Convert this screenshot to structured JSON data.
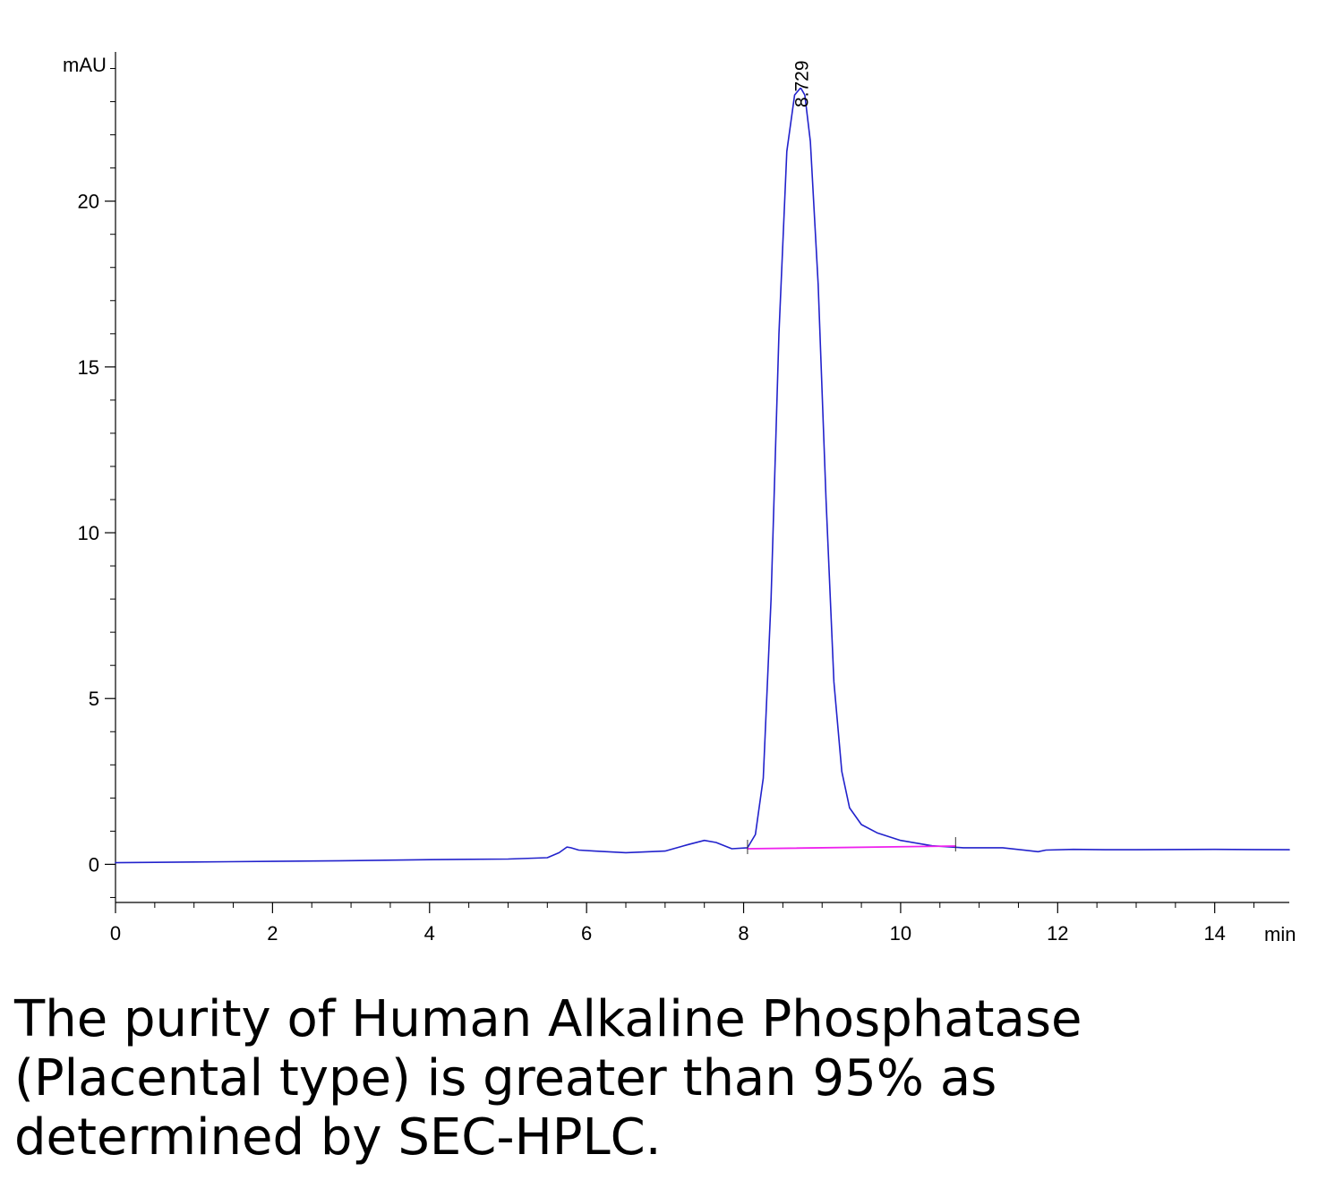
{
  "caption": "The purity of Human Alkaline Phosphatase (Placental type) is greater than 95% as determined by SEC-HPLC.",
  "chart_data": {
    "type": "line",
    "title": "",
    "xlabel": "min",
    "ylabel": "mAU",
    "xlim": [
      0,
      14.95
    ],
    "ylim": [
      -1.15,
      24.5
    ],
    "x_ticks": [
      0,
      2,
      4,
      6,
      8,
      10,
      12,
      14
    ],
    "x_tick_labels": [
      "0",
      "2",
      "4",
      "6",
      "8",
      "10",
      "12",
      "14"
    ],
    "x_minor_step": 0.5,
    "y_ticks": [
      0,
      5,
      10,
      15,
      20
    ],
    "y_tick_labels": [
      "0",
      "5",
      "10",
      "15",
      "20"
    ],
    "y_minor_step": 1,
    "grid": false,
    "legend": "none",
    "peak_label": "8.729",
    "peak_label_x": 8.729,
    "series": [
      {
        "color": "#2222cc",
        "x": [
          0.0,
          1.0,
          2.0,
          3.0,
          4.0,
          5.0,
          5.5,
          5.65,
          5.75,
          5.8,
          5.9,
          6.1,
          6.5,
          7.0,
          7.3,
          7.5,
          7.65,
          7.85,
          8.05,
          8.15,
          8.25,
          8.35,
          8.45,
          8.55,
          8.65,
          8.72,
          8.73,
          8.78,
          8.85,
          8.95,
          9.05,
          9.15,
          9.25,
          9.35,
          9.5,
          9.7,
          10.0,
          10.4,
          10.8,
          11.3,
          11.75,
          11.85,
          12.2,
          12.6,
          13.0,
          14.0,
          14.95
        ],
        "y": [
          0.05,
          0.07,
          0.09,
          0.11,
          0.14,
          0.16,
          0.2,
          0.35,
          0.52,
          0.5,
          0.43,
          0.4,
          0.35,
          0.4,
          0.6,
          0.72,
          0.66,
          0.47,
          0.5,
          0.9,
          2.6,
          8.0,
          16.0,
          21.5,
          23.2,
          23.4,
          23.4,
          23.2,
          21.8,
          17.5,
          11.0,
          5.5,
          2.8,
          1.7,
          1.2,
          0.95,
          0.72,
          0.56,
          0.5,
          0.5,
          0.38,
          0.43,
          0.45,
          0.44,
          0.44,
          0.45,
          0.44
        ]
      },
      {
        "color": "#ee22ee",
        "x": [
          8.05,
          10.7
        ],
        "y": [
          0.47,
          0.55
        ]
      }
    ]
  }
}
